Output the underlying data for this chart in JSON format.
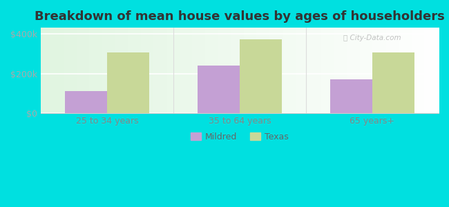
{
  "title": "Breakdown of mean house values by ages of householders",
  "categories": [
    "25 to 34 years",
    "35 to 64 years",
    "65 years+"
  ],
  "mildred_values": [
    110000,
    240000,
    170000
  ],
  "texas_values": [
    305000,
    370000,
    305000
  ],
  "mildred_color": "#c4a0d4",
  "texas_color": "#c8d898",
  "background_outer": "#00e0e0",
  "yticks": [
    0,
    200000,
    400000
  ],
  "ytick_labels": [
    "$0",
    "$200k",
    "$400k"
  ],
  "ylim": [
    0,
    430000
  ],
  "bar_width": 0.32,
  "title_fontsize": 13,
  "legend_labels": [
    "Mildred",
    "Texas"
  ],
  "figsize": [
    6.5,
    3.0
  ],
  "dpi": 100
}
